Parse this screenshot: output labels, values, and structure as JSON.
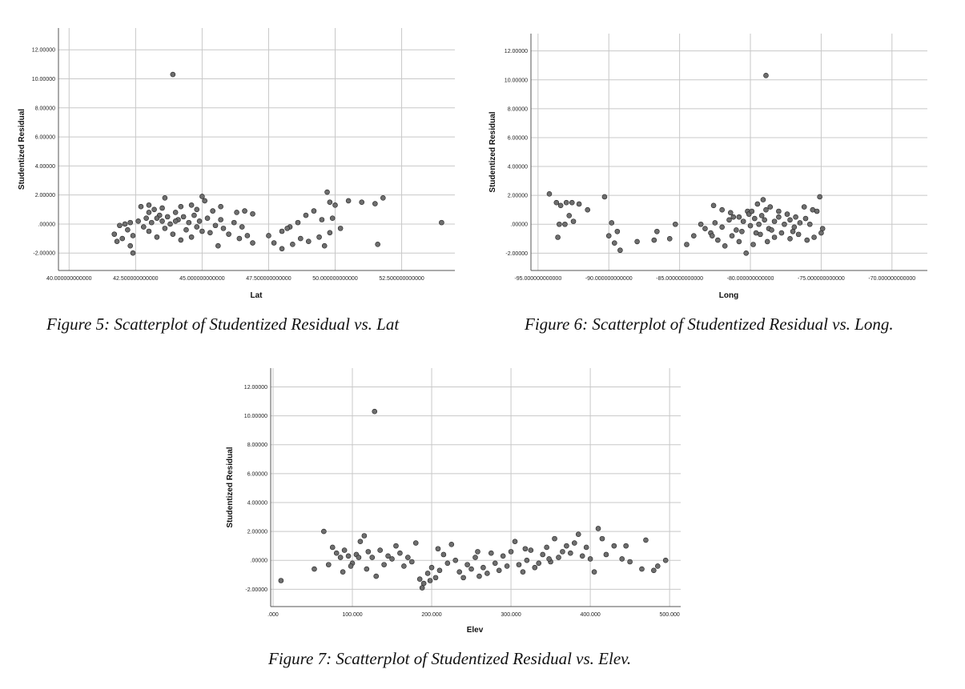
{
  "figures": [
    {
      "caption": "Figure 5: Scatterplot of Studentized Residual vs. Lat",
      "chart_data": {
        "type": "scatter",
        "title": "",
        "xlabel": "Lat",
        "ylabel": "Studentized Residual",
        "xlim": [
          39.6,
          54.5
        ],
        "ylim": [
          -3.2,
          13.5
        ],
        "x_ticks": [
          40,
          42.5,
          45,
          47.5,
          50,
          52.5
        ],
        "x_tick_labels": [
          "40.000000000000",
          "42.500000000000",
          "45.000000000000",
          "47.500000000000",
          "50.000000000000",
          "52.500000000000"
        ],
        "y_ticks": [
          -2,
          0,
          2,
          4,
          6,
          8,
          10,
          12
        ],
        "y_tick_labels": [
          "-2.00000",
          ".00000",
          "2.00000",
          "4.00000",
          "6.00000",
          "8.00000",
          "10.00000",
          "12.00000"
        ],
        "grid": true,
        "point_color": "#6e6e6e",
        "points": [
          [
            43.9,
            10.3
          ],
          [
            45.0,
            1.9
          ],
          [
            45.1,
            1.6
          ],
          [
            43.6,
            1.8
          ],
          [
            43.0,
            1.3
          ],
          [
            42.7,
            1.2
          ],
          [
            43.2,
            1.0
          ],
          [
            44.2,
            1.2
          ],
          [
            44.6,
            1.3
          ],
          [
            45.7,
            1.2
          ],
          [
            46.3,
            0.8
          ],
          [
            46.6,
            0.9
          ],
          [
            46.9,
            0.7
          ],
          [
            45.4,
            0.9
          ],
          [
            44.0,
            0.8
          ],
          [
            43.4,
            0.6
          ],
          [
            42.9,
            0.4
          ],
          [
            42.6,
            0.2
          ],
          [
            42.3,
            0.1
          ],
          [
            42.1,
            0.0
          ],
          [
            41.9,
            -0.1
          ],
          [
            42.2,
            -0.4
          ],
          [
            42.4,
            -0.8
          ],
          [
            42.0,
            -1.0
          ],
          [
            41.8,
            -1.2
          ],
          [
            41.7,
            -0.7
          ],
          [
            42.3,
            -1.5
          ],
          [
            42.4,
            -2.0
          ],
          [
            43.0,
            -0.5
          ],
          [
            43.3,
            -0.9
          ],
          [
            43.6,
            -0.3
          ],
          [
            43.9,
            -0.7
          ],
          [
            44.2,
            -1.1
          ],
          [
            44.4,
            -0.4
          ],
          [
            44.6,
            -0.9
          ],
          [
            44.8,
            -0.2
          ],
          [
            45.0,
            -0.5
          ],
          [
            45.3,
            -0.6
          ],
          [
            45.5,
            -0.1
          ],
          [
            45.8,
            -0.3
          ],
          [
            46.0,
            -0.7
          ],
          [
            46.4,
            -1.0
          ],
          [
            46.7,
            -0.8
          ],
          [
            46.9,
            -1.3
          ],
          [
            45.6,
            -1.5
          ],
          [
            44.1,
            0.3
          ],
          [
            44.3,
            0.5
          ],
          [
            44.5,
            0.1
          ],
          [
            44.7,
            0.6
          ],
          [
            44.9,
            0.2
          ],
          [
            43.1,
            0.1
          ],
          [
            43.3,
            0.4
          ],
          [
            43.5,
            0.2
          ],
          [
            43.7,
            0.5
          ],
          [
            43.8,
            0.0
          ],
          [
            42.8,
            -0.2
          ],
          [
            45.2,
            0.4
          ],
          [
            45.7,
            0.3
          ],
          [
            46.2,
            0.1
          ],
          [
            46.5,
            -0.2
          ],
          [
            43.0,
            0.8
          ],
          [
            43.5,
            1.1
          ],
          [
            44.0,
            0.2
          ],
          [
            44.8,
            1.0
          ],
          [
            47.5,
            -0.8
          ],
          [
            48.0,
            -0.5
          ],
          [
            48.3,
            -0.2
          ],
          [
            48.6,
            0.1
          ],
          [
            48.9,
            0.6
          ],
          [
            49.2,
            0.9
          ],
          [
            49.5,
            0.3
          ],
          [
            49.8,
            1.5
          ],
          [
            50.0,
            1.3
          ],
          [
            49.7,
            2.2
          ],
          [
            50.5,
            1.6
          ],
          [
            50.2,
            -0.3
          ],
          [
            49.8,
            -0.6
          ],
          [
            49.4,
            -0.9
          ],
          [
            49.0,
            -1.2
          ],
          [
            48.7,
            -1.0
          ],
          [
            48.4,
            -1.4
          ],
          [
            48.0,
            -1.7
          ],
          [
            47.7,
            -1.3
          ],
          [
            49.6,
            -1.5
          ],
          [
            51.0,
            1.5
          ],
          [
            51.5,
            1.4
          ],
          [
            51.8,
            1.8
          ],
          [
            51.6,
            -1.4
          ],
          [
            54.0,
            0.1
          ],
          [
            49.9,
            0.4
          ],
          [
            48.2,
            -0.3
          ]
        ]
      }
    },
    {
      "caption": "Figure 6: Scatterplot of Studentized Residual vs. Long.",
      "chart_data": {
        "type": "scatter",
        "title": "",
        "xlabel": "Long",
        "ylabel": "Studentized Residual",
        "xlim": [
          -95.5,
          -67.5
        ],
        "ylim": [
          -3.2,
          13.2
        ],
        "x_ticks": [
          -95,
          -90,
          -85,
          -80,
          -75,
          -70
        ],
        "x_tick_labels": [
          "-95.000000000000",
          "-90.000000000000",
          "-85.000000000000",
          "-80.000000000000",
          "-75.000000000000",
          "-70.000000000000"
        ],
        "y_ticks": [
          -2,
          0,
          2,
          4,
          6,
          8,
          10,
          12
        ],
        "y_tick_labels": [
          "-2.00000",
          ".00000",
          "2.00000",
          "4.00000",
          "6.00000",
          "8.00000",
          "10.00000",
          "12.00000"
        ],
        "grid": true,
        "point_color": "#6e6e6e",
        "points": [
          [
            -78.9,
            10.3
          ],
          [
            -94.2,
            2.1
          ],
          [
            -93.7,
            1.5
          ],
          [
            -93.4,
            1.3
          ],
          [
            -93.0,
            1.5
          ],
          [
            -92.6,
            1.5
          ],
          [
            -92.1,
            1.4
          ],
          [
            -91.5,
            1.0
          ],
          [
            -92.8,
            0.6
          ],
          [
            -92.5,
            0.2
          ],
          [
            -93.5,
            0.0
          ],
          [
            -93.1,
            0.0
          ],
          [
            -93.6,
            -0.9
          ],
          [
            -90.3,
            1.9
          ],
          [
            -89.8,
            0.1
          ],
          [
            -89.4,
            -0.5
          ],
          [
            -90.0,
            -0.8
          ],
          [
            -89.6,
            -1.3
          ],
          [
            -89.2,
            -1.8
          ],
          [
            -88.0,
            -1.2
          ],
          [
            -86.6,
            -0.5
          ],
          [
            -86.8,
            -1.1
          ],
          [
            -85.7,
            -1.0
          ],
          [
            -84.5,
            -1.4
          ],
          [
            -84.0,
            -0.8
          ],
          [
            -83.5,
            0.0
          ],
          [
            -85.3,
            0.0
          ],
          [
            -82.6,
            1.3
          ],
          [
            -82.0,
            1.0
          ],
          [
            -81.4,
            0.8
          ],
          [
            -80.8,
            0.5
          ],
          [
            -80.2,
            0.9
          ],
          [
            -79.5,
            1.4
          ],
          [
            -79.1,
            1.7
          ],
          [
            -78.6,
            1.2
          ],
          [
            -78.0,
            0.9
          ],
          [
            -77.4,
            0.7
          ],
          [
            -76.8,
            0.5
          ],
          [
            -76.2,
            1.2
          ],
          [
            -75.6,
            1.0
          ],
          [
            -75.1,
            1.9
          ],
          [
            -75.3,
            0.9
          ],
          [
            -74.9,
            -0.3
          ],
          [
            -75.0,
            -0.6
          ],
          [
            -75.5,
            -0.9
          ],
          [
            -76.0,
            -1.1
          ],
          [
            -76.6,
            -0.7
          ],
          [
            -77.2,
            -1.0
          ],
          [
            -77.8,
            -0.6
          ],
          [
            -78.3,
            -0.9
          ],
          [
            -78.8,
            -1.2
          ],
          [
            -79.3,
            -0.7
          ],
          [
            -79.8,
            -1.4
          ],
          [
            -80.3,
            -2.0
          ],
          [
            -80.8,
            -1.2
          ],
          [
            -81.3,
            -0.8
          ],
          [
            -81.8,
            -1.5
          ],
          [
            -82.3,
            -1.1
          ],
          [
            -82.8,
            -0.6
          ],
          [
            -83.2,
            -0.3
          ],
          [
            -82.5,
            0.1
          ],
          [
            -82.0,
            -0.2
          ],
          [
            -81.5,
            0.3
          ],
          [
            -81.0,
            -0.4
          ],
          [
            -80.5,
            0.2
          ],
          [
            -80.0,
            -0.1
          ],
          [
            -79.7,
            0.4
          ],
          [
            -79.4,
            0.0
          ],
          [
            -79.0,
            0.3
          ],
          [
            -78.7,
            -0.3
          ],
          [
            -78.3,
            0.2
          ],
          [
            -78.0,
            0.5
          ],
          [
            -77.6,
            0.0
          ],
          [
            -77.2,
            0.3
          ],
          [
            -76.9,
            -0.2
          ],
          [
            -76.5,
            0.1
          ],
          [
            -76.1,
            0.4
          ],
          [
            -75.8,
            0.0
          ],
          [
            -80.1,
            0.7
          ],
          [
            -79.9,
            0.9
          ],
          [
            -79.2,
            0.6
          ],
          [
            -78.9,
            1.0
          ],
          [
            -80.6,
            -0.5
          ],
          [
            -79.6,
            -0.6
          ],
          [
            -78.5,
            -0.4
          ],
          [
            -81.2,
            0.5
          ],
          [
            -82.7,
            -0.8
          ],
          [
            -77.0,
            -0.5
          ]
        ]
      }
    },
    {
      "caption": "Figure 7: Scatterplot of Studentized Residual vs. Elev.",
      "chart_data": {
        "type": "scatter",
        "title": "",
        "xlabel": "Elev",
        "ylabel": "Studentized Residual",
        "xlim": [
          -3,
          514
        ],
        "ylim": [
          -3.2,
          13.3
        ],
        "x_ticks": [
          0,
          100,
          200,
          300,
          400,
          500
        ],
        "x_tick_labels": [
          ".000",
          "100.000",
          "200.000",
          "300.000",
          "400.000",
          "500.000"
        ],
        "y_ticks": [
          -2,
          0,
          2,
          4,
          6,
          8,
          10,
          12
        ],
        "y_tick_labels": [
          "-2.00000",
          ".00000",
          "2.00000",
          "4.00000",
          "6.00000",
          "8.00000",
          "10.00000",
          "12.00000"
        ],
        "grid": true,
        "point_color": "#6e6e6e",
        "points": [
          [
            128,
            10.3
          ],
          [
            64,
            2.0
          ],
          [
            10,
            -1.4
          ],
          [
            52,
            -0.6
          ],
          [
            70,
            -0.3
          ],
          [
            75,
            0.9
          ],
          [
            80,
            0.5
          ],
          [
            85,
            0.2
          ],
          [
            90,
            0.7
          ],
          [
            95,
            0.3
          ],
          [
            100,
            -0.2
          ],
          [
            105,
            0.4
          ],
          [
            110,
            1.3
          ],
          [
            115,
            1.7
          ],
          [
            120,
            0.6
          ],
          [
            125,
            0.2
          ],
          [
            130,
            -1.1
          ],
          [
            135,
            0.7
          ],
          [
            140,
            -0.3
          ],
          [
            145,
            0.3
          ],
          [
            150,
            0.1
          ],
          [
            155,
            1.0
          ],
          [
            160,
            0.5
          ],
          [
            165,
            -0.4
          ],
          [
            170,
            0.2
          ],
          [
            175,
            -0.1
          ],
          [
            180,
            1.2
          ],
          [
            185,
            -1.3
          ],
          [
            190,
            -1.6
          ],
          [
            195,
            -0.9
          ],
          [
            200,
            -0.5
          ],
          [
            205,
            -1.2
          ],
          [
            210,
            -0.7
          ],
          [
            215,
            0.4
          ],
          [
            220,
            -0.2
          ],
          [
            225,
            1.1
          ],
          [
            230,
            0.0
          ],
          [
            235,
            -0.8
          ],
          [
            240,
            -1.2
          ],
          [
            245,
            -0.3
          ],
          [
            250,
            -0.6
          ],
          [
            255,
            0.2
          ],
          [
            260,
            -1.1
          ],
          [
            265,
            -0.5
          ],
          [
            270,
            -0.9
          ],
          [
            275,
            0.5
          ],
          [
            280,
            -0.2
          ],
          [
            285,
            -0.7
          ],
          [
            290,
            0.3
          ],
          [
            295,
            -0.4
          ],
          [
            300,
            0.6
          ],
          [
            305,
            1.3
          ],
          [
            310,
            -0.3
          ],
          [
            315,
            -0.8
          ],
          [
            320,
            0.0
          ],
          [
            325,
            0.7
          ],
          [
            330,
            -0.5
          ],
          [
            335,
            -0.2
          ],
          [
            340,
            0.4
          ],
          [
            345,
            0.9
          ],
          [
            350,
            -0.1
          ],
          [
            355,
            1.5
          ],
          [
            360,
            0.2
          ],
          [
            365,
            0.6
          ],
          [
            370,
            1.0
          ],
          [
            375,
            0.5
          ],
          [
            380,
            1.2
          ],
          [
            385,
            1.8
          ],
          [
            390,
            0.3
          ],
          [
            395,
            0.9
          ],
          [
            400,
            0.1
          ],
          [
            405,
            -0.8
          ],
          [
            410,
            2.2
          ],
          [
            415,
            1.5
          ],
          [
            420,
            0.4
          ],
          [
            430,
            1.0
          ],
          [
            440,
            0.1
          ],
          [
            445,
            1.0
          ],
          [
            450,
            -0.1
          ],
          [
            465,
            -0.6
          ],
          [
            470,
            1.4
          ],
          [
            480,
            -0.7
          ],
          [
            485,
            -0.4
          ],
          [
            495,
            0.0
          ],
          [
            88,
            -0.8
          ],
          [
            98,
            -0.4
          ],
          [
            108,
            0.2
          ],
          [
            118,
            -0.6
          ],
          [
            188,
            -1.9
          ],
          [
            198,
            -1.4
          ],
          [
            208,
            0.8
          ],
          [
            258,
            0.6
          ],
          [
            318,
            0.8
          ],
          [
            348,
            0.1
          ]
        ]
      }
    }
  ]
}
